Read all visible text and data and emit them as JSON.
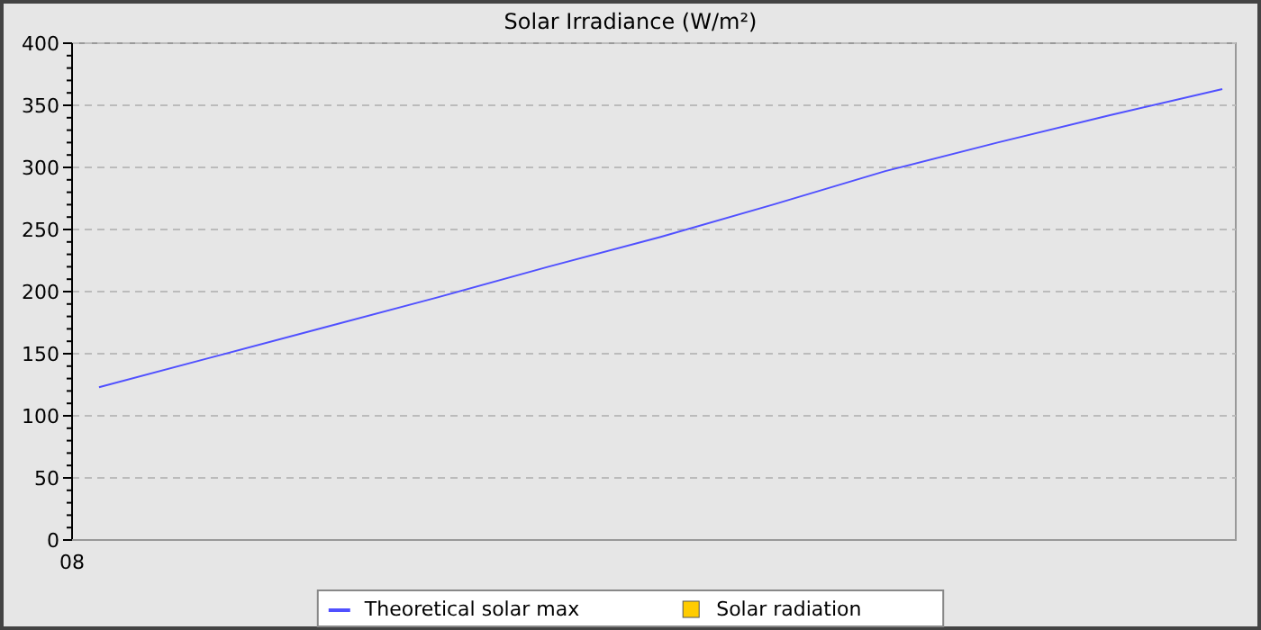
{
  "chart_data": {
    "type": "line",
    "title": "Solar Irradiance (W/m²)",
    "categories": [
      null,
      null,
      null,
      null,
      null,
      null,
      null,
      null,
      null,
      null,
      null
    ],
    "annotations": [
      "08"
    ],
    "ylim": [
      0,
      400
    ],
    "yticks": [
      {
        "value": 0,
        "label": "0"
      },
      {
        "value": 10,
        "label": null
      },
      {
        "value": 20,
        "label": null
      },
      {
        "value": 30,
        "label": null
      },
      {
        "value": 40,
        "label": null
      },
      {
        "value": 50,
        "label": "50"
      },
      {
        "value": 60,
        "label": null
      },
      {
        "value": 70,
        "label": null
      },
      {
        "value": 80,
        "label": null
      },
      {
        "value": 90,
        "label": null
      },
      {
        "value": 100,
        "label": "100"
      },
      {
        "value": 110,
        "label": null
      },
      {
        "value": 120,
        "label": null
      },
      {
        "value": 130,
        "label": null
      },
      {
        "value": 140,
        "label": null
      },
      {
        "value": 150,
        "label": "150"
      },
      {
        "value": 160,
        "label": null
      },
      {
        "value": 170,
        "label": null
      },
      {
        "value": 180,
        "label": null
      },
      {
        "value": 190,
        "label": null
      },
      {
        "value": 200,
        "label": "200"
      },
      {
        "value": 210,
        "label": null
      },
      {
        "value": 220,
        "label": null
      },
      {
        "value": 230,
        "label": null
      },
      {
        "value": 240,
        "label": null
      },
      {
        "value": 250,
        "label": "250"
      },
      {
        "value": 260,
        "label": null
      },
      {
        "value": 270,
        "label": null
      },
      {
        "value": 280,
        "label": null
      },
      {
        "value": 290,
        "label": null
      },
      {
        "value": 300,
        "label": "300"
      },
      {
        "value": 310,
        "label": null
      },
      {
        "value": 320,
        "label": null
      },
      {
        "value": 330,
        "label": null
      },
      {
        "value": 340,
        "label": null
      },
      {
        "value": 350,
        "label": "350"
      },
      {
        "value": 360,
        "label": null
      },
      {
        "value": 370,
        "label": null
      },
      {
        "value": 380,
        "label": null
      },
      {
        "value": 390,
        "label": null
      },
      {
        "value": 400,
        "label": "400"
      }
    ],
    "grid": "y",
    "legend": "bottom",
    "series": [
      {
        "name": "Theoretical solar max",
        "color": "#5050ff",
        "values": [
          123,
          147,
          171,
          195,
          220,
          244,
          270,
          297,
          320,
          342,
          363
        ]
      },
      {
        "name": "Solar radiation",
        "type": "scatter",
        "marker": "square",
        "color": "#ffcc00",
        "values": [
          null,
          null,
          null,
          null,
          null,
          null,
          null,
          null,
          null,
          null,
          null
        ]
      }
    ]
  }
}
